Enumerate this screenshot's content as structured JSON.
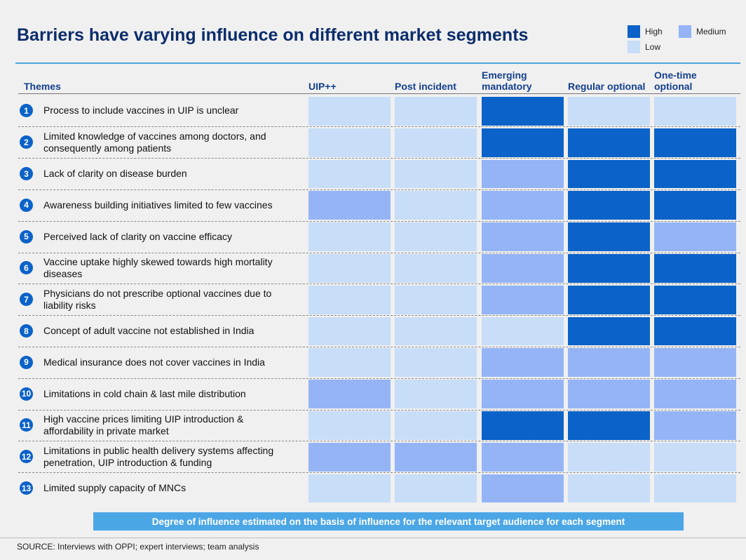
{
  "title": "Barriers have varying influence on different market segments",
  "legend": [
    {
      "label": "High",
      "color": "#0b62c8"
    },
    {
      "label": "Medium",
      "color": "#94b4f6"
    },
    {
      "label": "Low",
      "color": "#c7ddf8"
    }
  ],
  "table": {
    "theme_header": "Themes",
    "columns": [
      "UIP++",
      "Post incident",
      "Emerging mandatory",
      "Regular optional",
      "One-time optional"
    ],
    "rows": [
      {
        "number": "1",
        "text": "Process to include vaccines in UIP is unclear",
        "levels": [
          "Low",
          "Low",
          "High",
          "Low",
          "Low"
        ]
      },
      {
        "number": "2",
        "text": "Limited knowledge of vaccines among doctors, and consequently among patients",
        "levels": [
          "Low",
          "Low",
          "High",
          "High",
          "High"
        ]
      },
      {
        "number": "3",
        "text": "Lack of clarity on disease burden",
        "levels": [
          "Low",
          "Low",
          "Medium",
          "High",
          "High"
        ]
      },
      {
        "number": "4",
        "text": "Awareness building initiatives limited to few vaccines",
        "levels": [
          "Medium",
          "Low",
          "Medium",
          "High",
          "High"
        ]
      },
      {
        "number": "5",
        "text": "Perceived lack of clarity on vaccine efficacy",
        "levels": [
          "Low",
          "Low",
          "Medium",
          "High",
          "Medium"
        ]
      },
      {
        "number": "6",
        "text": "Vaccine uptake highly skewed towards high mortality diseases",
        "levels": [
          "Low",
          "Low",
          "Medium",
          "High",
          "High"
        ]
      },
      {
        "number": "7",
        "text": "Physicians do not prescribe optional vaccines due to liability risks",
        "levels": [
          "Low",
          "Low",
          "Medium",
          "High",
          "High"
        ]
      },
      {
        "number": "8",
        "text": "Concept of adult vaccine not established in India",
        "levels": [
          "Low",
          "Low",
          "Low",
          "High",
          "High"
        ]
      },
      {
        "number": "9",
        "text": "Medical insurance does not cover vaccines in India",
        "levels": [
          "Low",
          "Low",
          "Medium",
          "Medium",
          "Medium"
        ]
      },
      {
        "number": "10",
        "text": "Limitations in cold chain & last mile distribution",
        "levels": [
          "Medium",
          "Low",
          "Medium",
          "Medium",
          "Medium"
        ]
      },
      {
        "number": "11",
        "text": "High vaccine prices limiting UIP introduction & affordability in private market",
        "levels": [
          "Low",
          "Low",
          "High",
          "High",
          "Medium"
        ]
      },
      {
        "number": "12",
        "text": "Limitations in public health delivery systems affecting penetration, UIP introduction & funding",
        "levels": [
          "Medium",
          "Medium",
          "Medium",
          "Low",
          "Low"
        ]
      },
      {
        "number": "13",
        "text": "Limited supply capacity of MNCs",
        "levels": [
          "Low",
          "Low",
          "Medium",
          "Low",
          "Low"
        ]
      }
    ]
  },
  "note": "Degree of influence estimated on the basis of influence for the relevant target audience for each segment",
  "source": "SOURCE: Interviews with OPPI; expert interviews; team analysis"
}
